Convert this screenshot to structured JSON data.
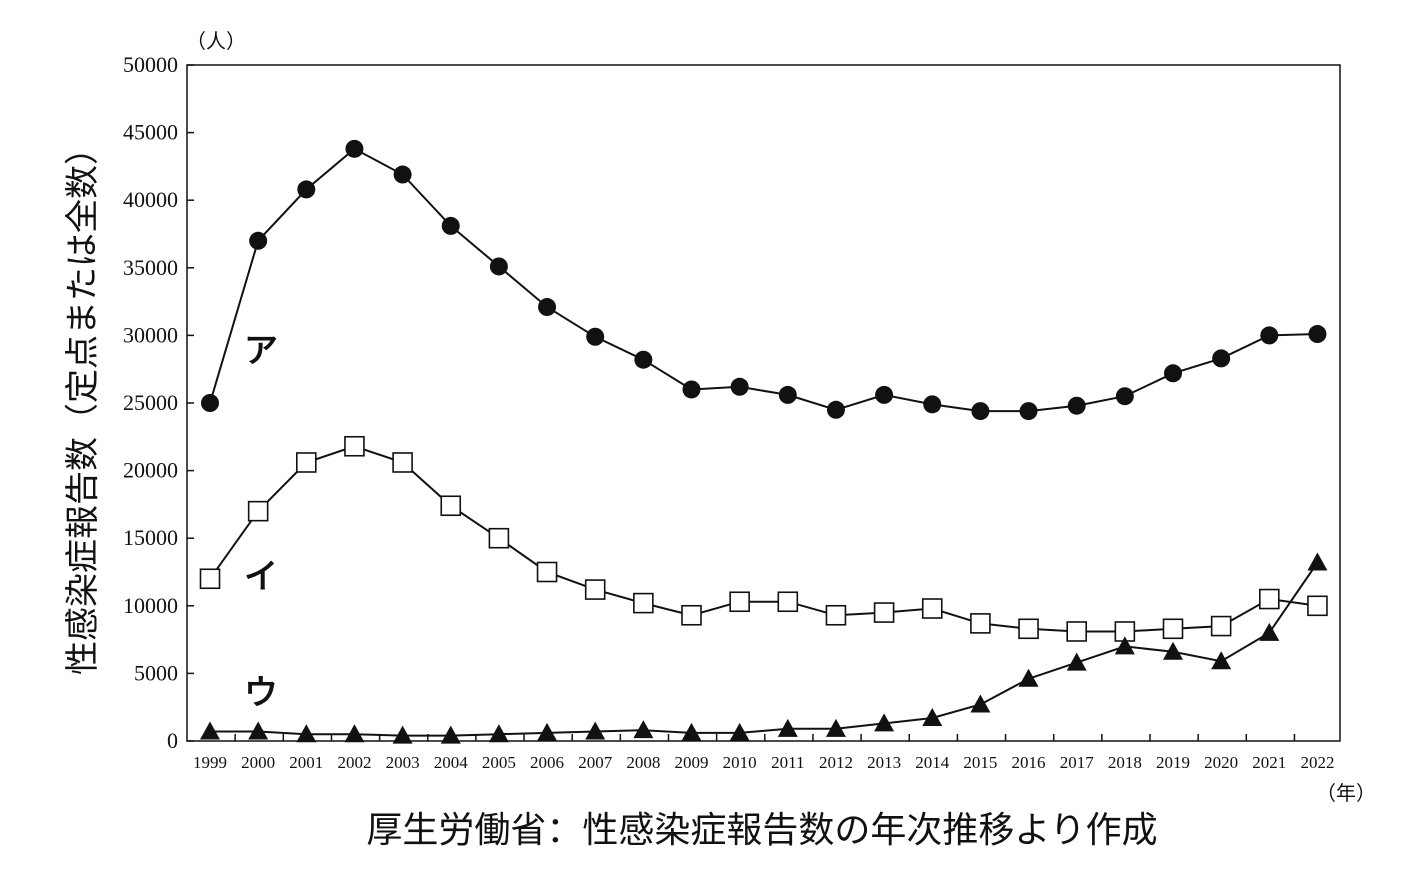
{
  "chart_data": {
    "type": "line",
    "y_unit": "（人）",
    "x_unit": "（年）",
    "ylabel": "性感染症報告数（定点または全数）",
    "source": "厚生労働省：性感染症報告数の年次推移より作成",
    "ylim": [
      0,
      50000
    ],
    "yticks": [
      0,
      5000,
      10000,
      15000,
      20000,
      25000,
      30000,
      35000,
      40000,
      45000,
      50000
    ],
    "grid": false,
    "x": [
      1999,
      2000,
      2001,
      2002,
      2003,
      2004,
      2005,
      2006,
      2007,
      2008,
      2009,
      2010,
      2011,
      2012,
      2013,
      2014,
      2015,
      2016,
      2017,
      2018,
      2019,
      2020,
      2021,
      2022
    ],
    "series": [
      {
        "name": "ア",
        "marker": "filled-circle",
        "values": [
          25000,
          37000,
          40800,
          43800,
          41900,
          38100,
          35100,
          32100,
          29900,
          28200,
          26000,
          26200,
          25600,
          24500,
          25600,
          24900,
          24400,
          24400,
          24800,
          25500,
          27200,
          28300,
          30000,
          30100
        ]
      },
      {
        "name": "イ",
        "marker": "open-square",
        "values": [
          12000,
          17000,
          20600,
          21800,
          20600,
          17400,
          15000,
          12500,
          11200,
          10200,
          9300,
          10300,
          10300,
          9300,
          9500,
          9800,
          8700,
          8300,
          8100,
          8100,
          8300,
          8500,
          10500,
          10000
        ]
      },
      {
        "name": "ウ",
        "marker": "filled-triangle",
        "values": [
          700,
          700,
          500,
          500,
          400,
          400,
          500,
          600,
          700,
          800,
          600,
          600,
          900,
          900,
          1300,
          1700,
          2700,
          4600,
          5800,
          7000,
          6600,
          5900,
          8000,
          13200
        ]
      }
    ]
  },
  "colors": {
    "line": "#111111",
    "fill": "#ffffff"
  }
}
